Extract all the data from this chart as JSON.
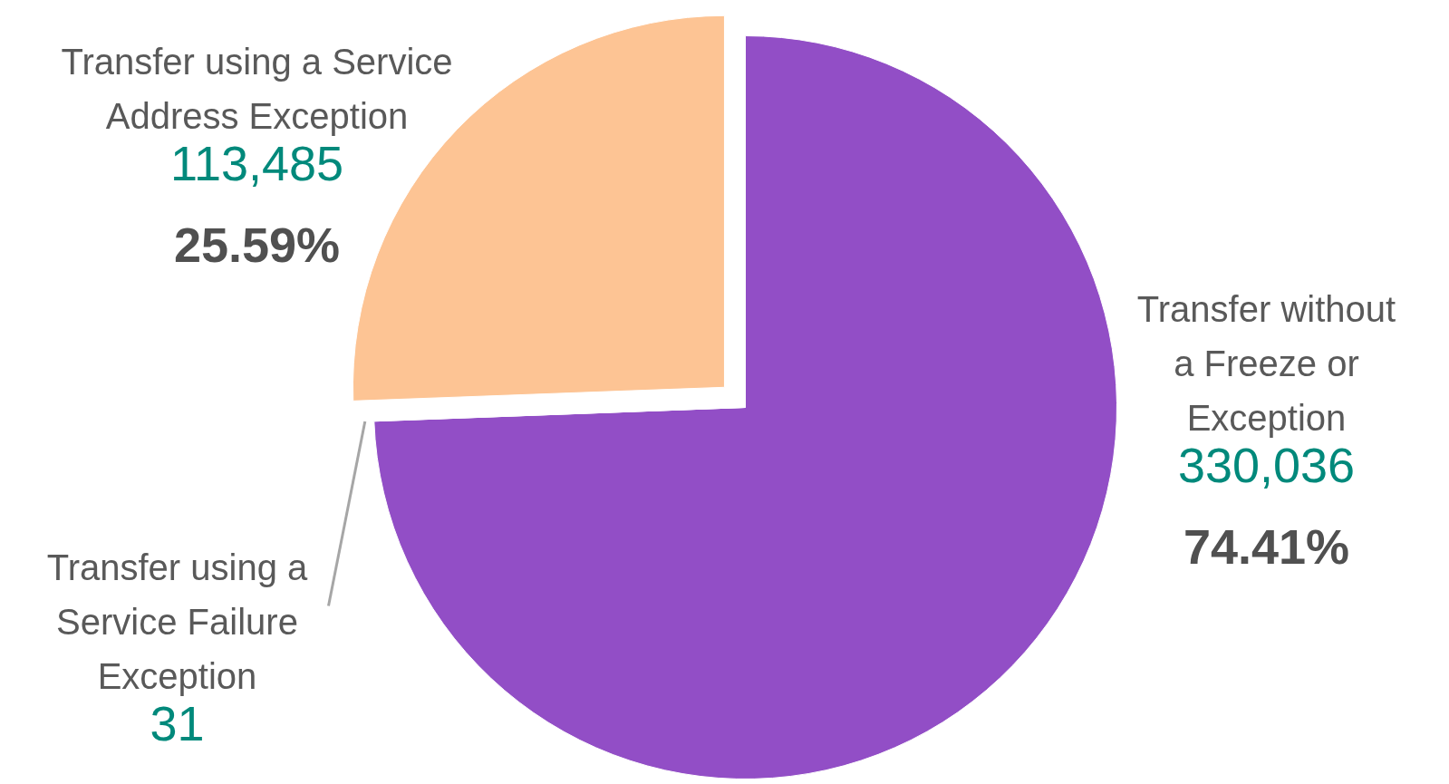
{
  "chart_data": {
    "type": "pie",
    "categories": [
      "Transfer without a Freeze or Exception",
      "Transfer using a Service Failure Exception",
      "Transfer using a Service Address Exception"
    ],
    "values": [
      330036,
      31,
      113485
    ],
    "colors": [
      "#924ec6",
      "#a6a6a6",
      "#fdc494"
    ],
    "value_labels": [
      "330,036",
      "31",
      "113,485"
    ],
    "annotations": [
      "74.41%",
      null,
      "25.59%"
    ]
  }
}
